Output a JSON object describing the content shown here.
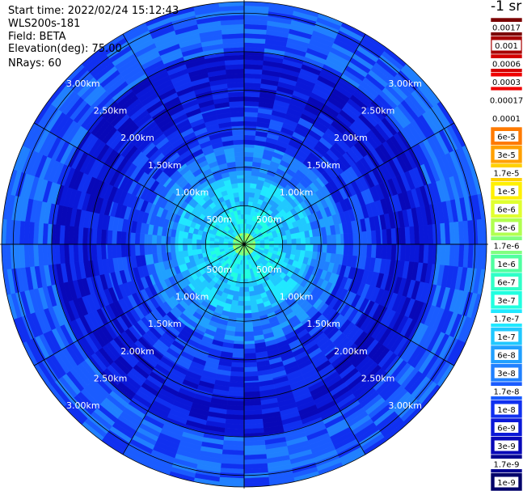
{
  "header": {
    "start_time": "Start time: 2022/02/24 15:12:43",
    "device": "WLS200s-181",
    "field": "Field: BETA",
    "elevation": "Elevation(deg): 75.00",
    "nrays": "NRays: 60"
  },
  "colorbar": {
    "unit_label": "-1 sr",
    "levels": [
      "0.0017",
      "0.001",
      "0.0006",
      "0.0003",
      "0.00017",
      "0.0001",
      "6e-5",
      "3e-5",
      "1.7e-5",
      "1e-5",
      "6e-6",
      "3e-6",
      "1.7e-6",
      "1e-6",
      "6e-7",
      "3e-7",
      "1.7e-7",
      "1e-7",
      "6e-8",
      "3e-8",
      "1.7e-8",
      "1e-8",
      "6e-9",
      "3e-9",
      "1.7e-9",
      "1e-9"
    ],
    "colors": [
      "#7a0000",
      "#a80000",
      "#d40000",
      "#f00000",
      "#ffffff",
      "#ffffff",
      "#ff7a00",
      "#ffa000",
      "#ffd000",
      "#fff000",
      "#e0ff30",
      "#b0ff50",
      "#80ff80",
      "#50ffa0",
      "#30ffc8",
      "#20ffe0",
      "#20e8ff",
      "#20c8ff",
      "#20a0ff",
      "#2080ff",
      "#1a5cff",
      "#1030f0",
      "#0a18d8",
      "#0808b8",
      "#040490",
      "#02026a"
    ]
  },
  "chart_data": {
    "type": "heatmap",
    "projection": "polar",
    "title": "",
    "field": "BETA",
    "rays": 60,
    "elevation_deg": 75.0,
    "range_rings_km": [
      0.5,
      1.0,
      1.5,
      2.0,
      2.5,
      3.0
    ],
    "ring_labels": [
      "500m",
      "1.00km",
      "1.50km",
      "2.00km",
      "2.50km",
      "3.00km"
    ],
    "max_range_km": 3.15,
    "spokes_deg": [
      0,
      30,
      60,
      90,
      120,
      150,
      180,
      210,
      240,
      270,
      300,
      330
    ],
    "range_bins": [
      {
        "r_km": [
          0.0,
          0.15
        ],
        "level": "1.7e-6"
      },
      {
        "r_km": [
          0.15,
          0.5
        ],
        "level": "1.7e-7"
      },
      {
        "r_km": [
          0.5,
          0.9
        ],
        "level": "1e-7"
      },
      {
        "r_km": [
          0.9,
          1.3
        ],
        "level": "3e-8"
      },
      {
        "r_km": [
          1.3,
          1.8
        ],
        "level": "1e-8"
      },
      {
        "r_km": [
          1.8,
          2.5
        ],
        "level": "6e-9"
      },
      {
        "r_km": [
          2.5,
          3.15
        ],
        "level": "1.7e-8"
      }
    ]
  }
}
